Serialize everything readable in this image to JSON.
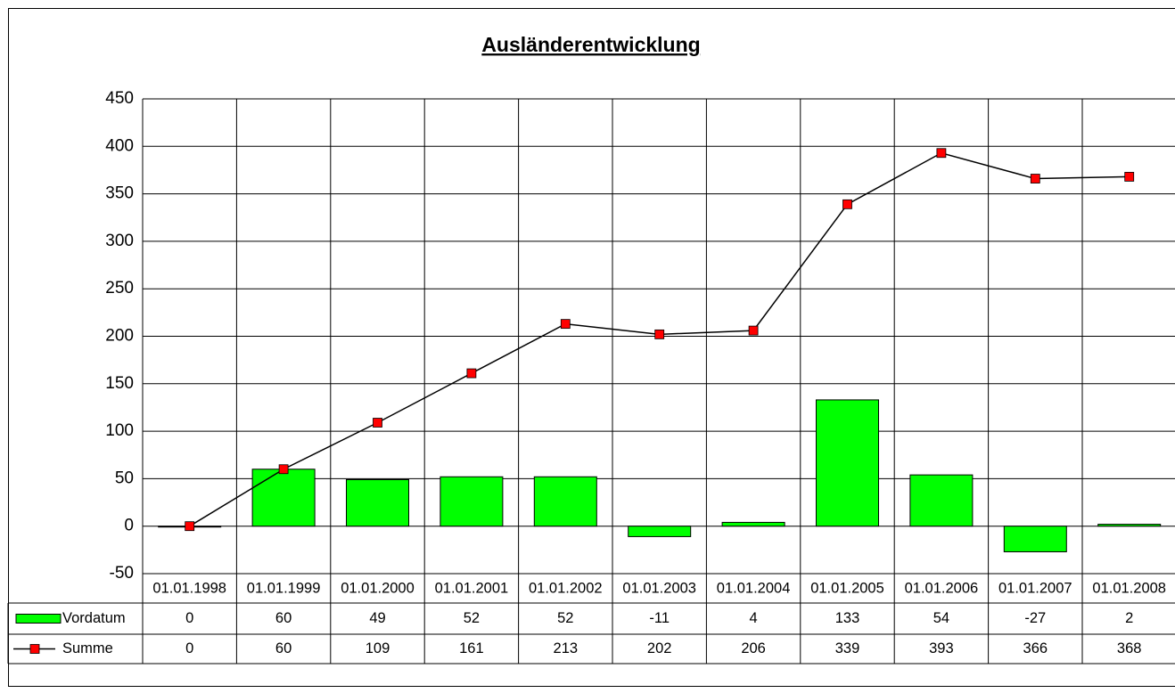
{
  "chart_data": {
    "type": "bar",
    "title": "Ausländerentwicklung",
    "categories": [
      "01.01.1998",
      "01.01.1999",
      "01.01.2000",
      "01.01.2001",
      "01.01.2002",
      "01.01.2003",
      "01.01.2004",
      "01.01.2005",
      "01.01.2006",
      "01.01.2007",
      "01.01.2008"
    ],
    "series": [
      {
        "name": "Vordatum",
        "type": "bar",
        "color": "#00ff00",
        "values": [
          0,
          60,
          49,
          52,
          52,
          -11,
          4,
          133,
          54,
          -27,
          2
        ]
      },
      {
        "name": "Summe",
        "type": "line",
        "color": "#000000",
        "marker_color": "#ff0000",
        "values": [
          0,
          60,
          109,
          161,
          213,
          202,
          206,
          339,
          393,
          366,
          368
        ]
      }
    ],
    "ylim": [
      -50,
      450
    ],
    "yticks": [
      -50,
      0,
      50,
      100,
      150,
      200,
      250,
      300,
      350,
      400,
      450
    ],
    "grid": true,
    "data_table": true
  }
}
